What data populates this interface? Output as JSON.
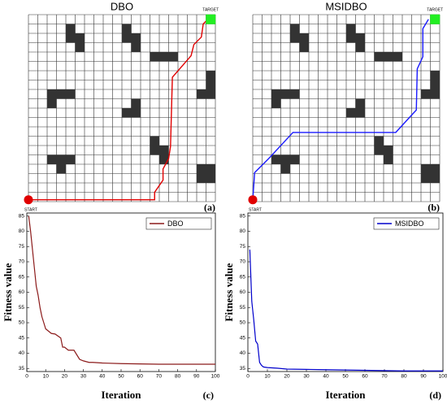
{
  "chart_data": [
    {
      "type": "gridmap",
      "title": "DBO",
      "panel": "(a)",
      "start_label": "START",
      "target_label": "TARGET",
      "cols": 20,
      "rows": 20,
      "obstacles": [
        [
          4,
          1
        ],
        [
          4,
          2
        ],
        [
          5,
          2
        ],
        [
          5,
          3
        ],
        [
          10,
          1
        ],
        [
          10,
          2
        ],
        [
          11,
          2
        ],
        [
          11,
          3
        ],
        [
          13,
          4
        ],
        [
          14,
          4
        ],
        [
          15,
          4
        ],
        [
          19,
          6
        ],
        [
          19,
          7
        ],
        [
          18,
          8
        ],
        [
          19,
          8
        ],
        [
          2,
          8
        ],
        [
          3,
          8
        ],
        [
          4,
          8
        ],
        [
          2,
          9
        ],
        [
          11,
          9
        ],
        [
          10,
          10
        ],
        [
          11,
          10
        ],
        [
          13,
          13
        ],
        [
          13,
          14
        ],
        [
          14,
          14
        ],
        [
          14,
          15
        ],
        [
          2,
          15
        ],
        [
          3,
          15
        ],
        [
          4,
          15
        ],
        [
          3,
          16
        ],
        [
          18,
          16
        ],
        [
          19,
          16
        ],
        [
          18,
          17
        ],
        [
          19,
          17
        ]
      ],
      "start": [
        0,
        19.8
      ],
      "target": [
        19.5,
        0.5
      ],
      "path_color": "#e00000",
      "x": [
        0,
        13.5,
        13.5,
        14.4,
        14.4,
        15,
        15.2,
        15.4,
        17.4,
        17.7,
        18.5,
        18.7,
        19.3
      ],
      "y": [
        19.8,
        19.8,
        19,
        17.7,
        16.5,
        15.4,
        14.1,
        6.7,
        4.4,
        3.2,
        2.4,
        1,
        0.4
      ]
    },
    {
      "type": "gridmap",
      "title": "MSIDBO",
      "panel": "(b)",
      "start_label": "START",
      "target_label": "TARGET",
      "cols": 20,
      "rows": 20,
      "obstacles": [
        [
          4,
          1
        ],
        [
          4,
          2
        ],
        [
          5,
          2
        ],
        [
          5,
          3
        ],
        [
          10,
          1
        ],
        [
          10,
          2
        ],
        [
          11,
          2
        ],
        [
          11,
          3
        ],
        [
          13,
          4
        ],
        [
          14,
          4
        ],
        [
          15,
          4
        ],
        [
          19,
          6
        ],
        [
          19,
          7
        ],
        [
          18,
          8
        ],
        [
          19,
          8
        ],
        [
          2,
          8
        ],
        [
          3,
          8
        ],
        [
          4,
          8
        ],
        [
          2,
          9
        ],
        [
          11,
          9
        ],
        [
          10,
          10
        ],
        [
          11,
          10
        ],
        [
          13,
          13
        ],
        [
          13,
          14
        ],
        [
          14,
          14
        ],
        [
          14,
          15
        ],
        [
          2,
          15
        ],
        [
          3,
          15
        ],
        [
          4,
          15
        ],
        [
          3,
          16
        ],
        [
          18,
          16
        ],
        [
          19,
          16
        ],
        [
          18,
          17
        ],
        [
          19,
          17
        ]
      ],
      "start": [
        0,
        19.8
      ],
      "target": [
        19.5,
        0.5
      ],
      "path_color": "#1a1aff",
      "x": [
        0,
        0.2,
        1.7,
        4.3,
        15.3,
        17.5,
        17.6,
        18.2,
        18.2,
        18.8
      ],
      "y": [
        19.8,
        16.9,
        15.4,
        12.6,
        12.6,
        10.2,
        5.8,
        4.5,
        1.5,
        0.5
      ]
    },
    {
      "type": "line",
      "panel": "(c)",
      "xlabel": "Iteration",
      "ylabel": "Fitness value",
      "legend": "upper right",
      "xlim": [
        0,
        100
      ],
      "xticks": [
        0,
        10,
        20,
        30,
        40,
        50,
        60,
        70,
        80,
        90,
        100
      ],
      "ylim": [
        34,
        86
      ],
      "yticks": [
        35,
        40,
        45,
        50,
        55,
        60,
        65,
        70,
        75,
        80,
        85
      ],
      "x": [
        1,
        2,
        3,
        4,
        5,
        6,
        7,
        8,
        9,
        10,
        12,
        13,
        15,
        18,
        19,
        20,
        22,
        23,
        25,
        27,
        28,
        30,
        33,
        35,
        40,
        50,
        60,
        70,
        80,
        90,
        100
      ],
      "series": [
        {
          "name": "DBO",
          "color": "#8b1a1a",
          "values": [
            85,
            80,
            74,
            68,
            62,
            59,
            55,
            52,
            50,
            48,
            47,
            46.5,
            46.3,
            45,
            42,
            42,
            41,
            41,
            41,
            39,
            38,
            37.5,
            37,
            37,
            36.8,
            36.6,
            36.5,
            36.4,
            36.4,
            36.4,
            36.4
          ]
        }
      ]
    },
    {
      "type": "line",
      "panel": "(d)",
      "xlabel": "Iteration",
      "ylabel": "Fitness value",
      "legend": "upper right",
      "xlim": [
        0,
        100
      ],
      "xticks": [
        0,
        10,
        20,
        30,
        40,
        50,
        60,
        70,
        80,
        90,
        100
      ],
      "ylim": [
        34,
        86
      ],
      "yticks": [
        35,
        40,
        45,
        50,
        55,
        60,
        65,
        70,
        75,
        80,
        85
      ],
      "x": [
        1,
        2,
        3,
        4,
        5,
        6,
        7,
        8,
        10,
        15,
        20,
        30,
        40,
        50,
        60,
        70,
        80,
        90,
        100
      ],
      "series": [
        {
          "name": "MSIDBO",
          "color": "#0000cc",
          "values": [
            74,
            57,
            51,
            44,
            43,
            37,
            36,
            35.5,
            35.3,
            35.1,
            34.8,
            34.7,
            34.6,
            34.5,
            34.4,
            34.3,
            34.2,
            34.2,
            34.2
          ]
        }
      ]
    }
  ]
}
